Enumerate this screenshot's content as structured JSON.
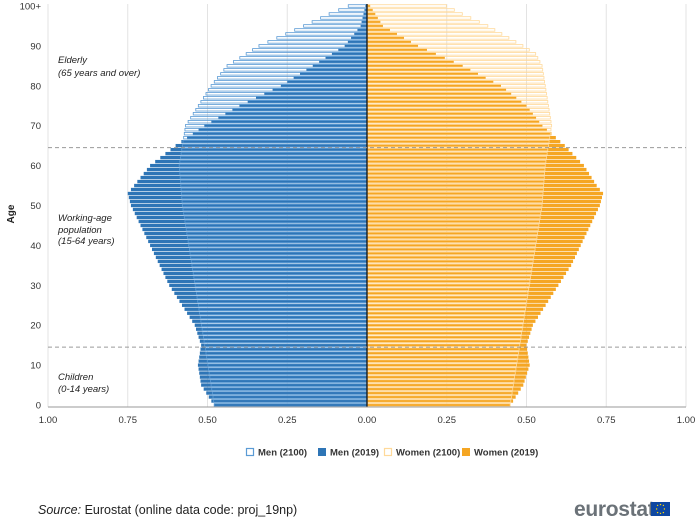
{
  "chart_data": {
    "type": "population_pyramid",
    "y_label": "Age",
    "y_ticks": [
      "0",
      "10",
      "20",
      "30",
      "40",
      "50",
      "60",
      "70",
      "80",
      "90",
      "100+"
    ],
    "x_ticks": [
      "1.00",
      "0.75",
      "0.50",
      "0.25",
      "0.00",
      "0.25",
      "0.50",
      "0.75",
      "1.00"
    ],
    "xlim": [
      -1.0,
      1.0
    ],
    "ages": "0 to 100+ (single years)",
    "dashed_lines_at_age": [
      14.5,
      64.5
    ],
    "age_group_labels": [
      {
        "lines": [
          "Elderly",
          "(65 years and over)"
        ]
      },
      {
        "lines": [
          "Working-age",
          "population",
          "(15-64 years)"
        ]
      },
      {
        "lines": [
          "Children",
          "(0-14 years)"
        ]
      }
    ],
    "series": [
      {
        "name": "Men (2100)",
        "side": "left",
        "color": "#5b9bd5",
        "style": "outline",
        "anchors": [
          [
            0,
            0.48
          ],
          [
            10,
            0.5
          ],
          [
            20,
            0.52
          ],
          [
            30,
            0.54
          ],
          [
            40,
            0.56
          ],
          [
            50,
            0.58
          ],
          [
            60,
            0.59
          ],
          [
            70,
            0.57
          ],
          [
            75,
            0.53
          ],
          [
            80,
            0.49
          ],
          [
            85,
            0.44
          ],
          [
            90,
            0.34
          ],
          [
            95,
            0.2
          ],
          [
            98,
            0.12
          ],
          [
            100,
            0.06
          ]
        ]
      },
      {
        "name": "Men (2019)",
        "side": "left",
        "color": "#2e75b6",
        "style": "filled",
        "anchors": [
          [
            0,
            0.48
          ],
          [
            5,
            0.52
          ],
          [
            10,
            0.53
          ],
          [
            15,
            0.52
          ],
          [
            20,
            0.54
          ],
          [
            25,
            0.58
          ],
          [
            30,
            0.62
          ],
          [
            35,
            0.65
          ],
          [
            40,
            0.68
          ],
          [
            45,
            0.71
          ],
          [
            50,
            0.74
          ],
          [
            53,
            0.75
          ],
          [
            55,
            0.73
          ],
          [
            60,
            0.68
          ],
          [
            65,
            0.6
          ],
          [
            70,
            0.51
          ],
          [
            75,
            0.4
          ],
          [
            80,
            0.27
          ],
          [
            85,
            0.17
          ],
          [
            90,
            0.07
          ],
          [
            95,
            0.02
          ],
          [
            100,
            0.005
          ]
        ]
      },
      {
        "name": "Women (2100)",
        "side": "right",
        "color": "#ffd99a",
        "style": "outline",
        "anchors": [
          [
            0,
            0.45
          ],
          [
            10,
            0.47
          ],
          [
            20,
            0.49
          ],
          [
            30,
            0.51
          ],
          [
            40,
            0.53
          ],
          [
            50,
            0.55
          ],
          [
            60,
            0.56
          ],
          [
            70,
            0.58
          ],
          [
            75,
            0.57
          ],
          [
            80,
            0.56
          ],
          [
            85,
            0.55
          ],
          [
            88,
            0.53
          ],
          [
            90,
            0.49
          ],
          [
            95,
            0.38
          ],
          [
            98,
            0.3
          ],
          [
            100,
            0.25
          ]
        ]
      },
      {
        "name": "Women (2019)",
        "side": "right",
        "color": "#f5a623",
        "style": "filled",
        "anchors": [
          [
            0,
            0.45
          ],
          [
            5,
            0.49
          ],
          [
            10,
            0.51
          ],
          [
            15,
            0.5
          ],
          [
            20,
            0.52
          ],
          [
            25,
            0.56
          ],
          [
            30,
            0.6
          ],
          [
            35,
            0.64
          ],
          [
            40,
            0.67
          ],
          [
            45,
            0.7
          ],
          [
            50,
            0.73
          ],
          [
            53,
            0.74
          ],
          [
            55,
            0.72
          ],
          [
            60,
            0.68
          ],
          [
            65,
            0.62
          ],
          [
            70,
            0.55
          ],
          [
            75,
            0.5
          ],
          [
            80,
            0.42
          ],
          [
            85,
            0.3
          ],
          [
            90,
            0.16
          ],
          [
            95,
            0.05
          ],
          [
            100,
            0.01
          ]
        ]
      }
    ],
    "colors": {
      "men_2019": "#2e75b6",
      "men_2100": "#5b9bd5",
      "women_2019": "#f5a623",
      "women_2100": "#ffd99a"
    }
  },
  "footer": {
    "source_label": "Source:",
    "source_text": " Eurostat (online data code: proj_19np)",
    "logo": "eurostat"
  }
}
